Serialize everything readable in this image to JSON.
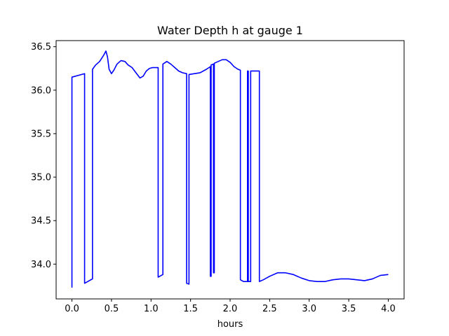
{
  "chart_data": {
    "type": "line",
    "title": "Water Depth h at gauge 1",
    "xlabel": "hours",
    "ylabel": "",
    "xlim": [
      -0.2,
      4.2
    ],
    "ylim": [
      33.6,
      36.57
    ],
    "grid": false,
    "legend": "none",
    "x_ticks": [
      0.0,
      0.5,
      1.0,
      1.5,
      2.0,
      2.5,
      3.0,
      3.5,
      4.0
    ],
    "x_tick_labels": [
      "0.0",
      "0.5",
      "1.0",
      "1.5",
      "2.0",
      "2.5",
      "3.0",
      "3.5",
      "4.0"
    ],
    "y_ticks": [
      34.0,
      34.5,
      35.0,
      35.5,
      36.0,
      36.5
    ],
    "y_tick_labels": [
      "34.0",
      "34.5",
      "35.0",
      "35.5",
      "36.0",
      "36.5"
    ],
    "series": [
      {
        "color": "#0000ff",
        "x": [
          0.0,
          0.0,
          0.16,
          0.16,
          0.26,
          0.26,
          0.3,
          0.35,
          0.4,
          0.43,
          0.45,
          0.47,
          0.5,
          0.53,
          0.57,
          0.62,
          0.67,
          0.71,
          0.76,
          0.81,
          0.86,
          0.9,
          0.94,
          0.98,
          1.02,
          1.06,
          1.09,
          1.09,
          1.15,
          1.15,
          1.2,
          1.25,
          1.3,
          1.35,
          1.4,
          1.45,
          1.45,
          1.48,
          1.48,
          1.55,
          1.62,
          1.7,
          1.75,
          1.75,
          1.76,
          1.76,
          1.79,
          1.79,
          1.8,
          1.8,
          1.85,
          1.9,
          1.95,
          2.0,
          2.05,
          2.1,
          2.13,
          2.13,
          2.17,
          2.22,
          2.22,
          2.23,
          2.23,
          2.26,
          2.26,
          2.37,
          2.37,
          2.42,
          2.5,
          2.6,
          2.7,
          2.8,
          2.9,
          3.0,
          3.1,
          3.2,
          3.3,
          3.4,
          3.5,
          3.6,
          3.7,
          3.8,
          3.9,
          4.0
        ],
        "y": [
          33.73,
          36.15,
          36.19,
          33.78,
          33.83,
          36.24,
          36.29,
          36.33,
          36.4,
          36.45,
          36.38,
          36.24,
          36.19,
          36.23,
          36.3,
          36.34,
          36.33,
          36.29,
          36.26,
          36.2,
          36.14,
          36.16,
          36.22,
          36.25,
          36.26,
          36.26,
          36.26,
          33.85,
          33.88,
          36.3,
          36.33,
          36.3,
          36.26,
          36.22,
          36.2,
          36.19,
          33.78,
          33.77,
          36.18,
          36.19,
          36.2,
          36.24,
          36.27,
          33.86,
          33.86,
          36.29,
          36.3,
          33.9,
          33.9,
          36.31,
          36.33,
          36.35,
          36.35,
          36.32,
          36.27,
          36.24,
          36.23,
          33.82,
          33.8,
          33.8,
          36.22,
          36.22,
          33.8,
          33.8,
          36.22,
          36.22,
          33.8,
          33.82,
          33.86,
          33.9,
          33.9,
          33.88,
          33.84,
          33.81,
          33.8,
          33.8,
          33.82,
          33.83,
          33.83,
          33.82,
          33.81,
          33.83,
          33.87,
          33.88
        ]
      }
    ]
  }
}
